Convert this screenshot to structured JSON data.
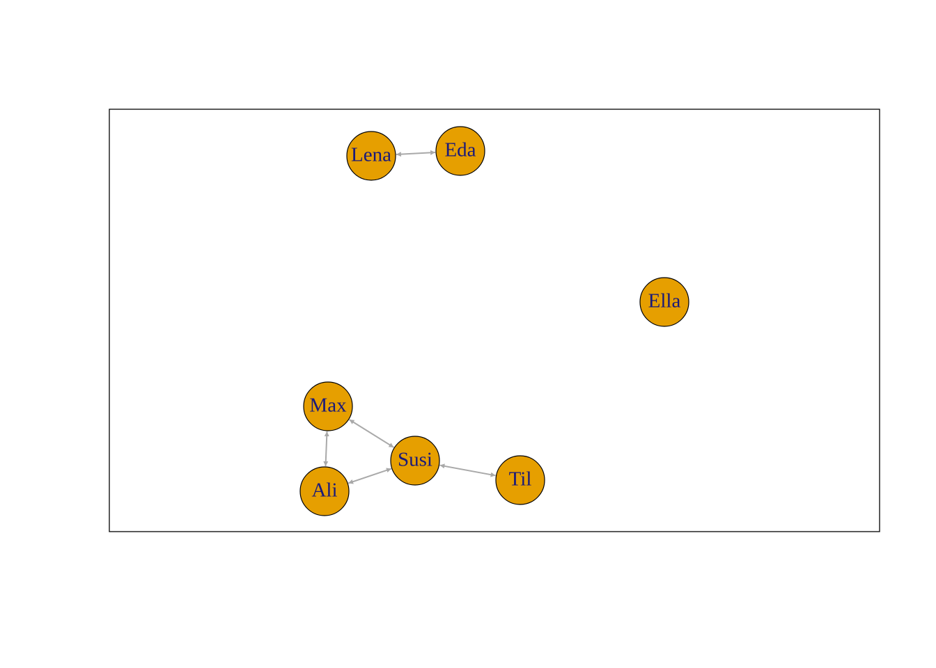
{
  "colors": {
    "node_fill": "#E69F00",
    "node_stroke": "#000000",
    "label": "#1A1A7A",
    "edge": "#A9A9A9",
    "frame": "#000000"
  },
  "nodes": [
    {
      "id": "lena",
      "label": "Lena"
    },
    {
      "id": "eda",
      "label": "Eda"
    },
    {
      "id": "ella",
      "label": "Ella"
    },
    {
      "id": "max",
      "label": "Max"
    },
    {
      "id": "susi",
      "label": "Susi"
    },
    {
      "id": "ali",
      "label": "Ali"
    },
    {
      "id": "til",
      "label": "Til"
    }
  ],
  "edges": [
    {
      "from": "lena",
      "to": "eda",
      "direction": "both"
    },
    {
      "from": "max",
      "to": "susi",
      "direction": "both"
    },
    {
      "from": "max",
      "to": "ali",
      "direction": "both"
    },
    {
      "from": "ali",
      "to": "susi",
      "direction": "both"
    },
    {
      "from": "susi",
      "to": "til",
      "direction": "both"
    }
  ]
}
